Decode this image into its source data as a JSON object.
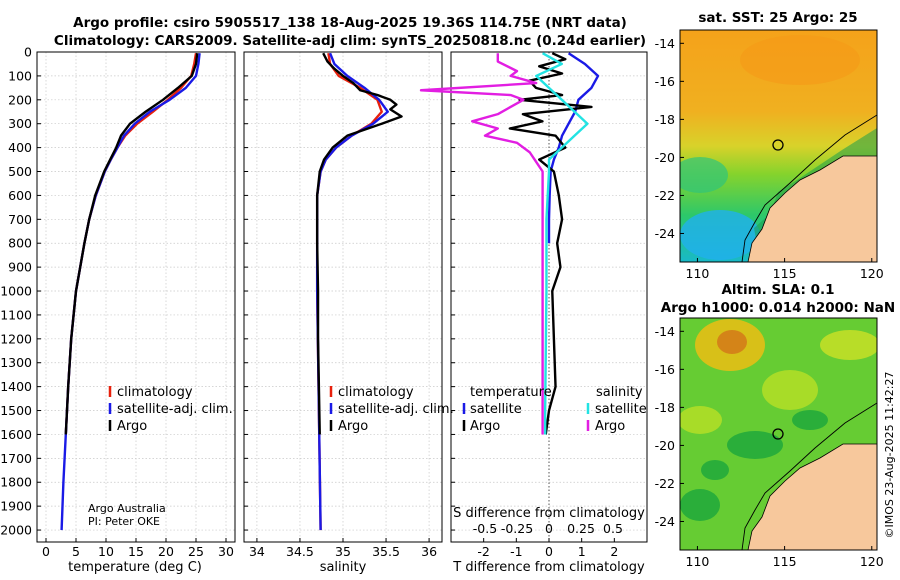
{
  "titles": {
    "line1": "Argo profile: csiro 5905517_138 18-Aug-2025 19.36S 114.75E (NRT data)",
    "line2": "Climatology: CARS2009. Satellite-adj clim: synTS_20250818.nc (0.24d earlier)",
    "sst_title": "sat. SST: 25 Argo: 25",
    "sla_title1": "Altim. SLA: 0.1",
    "sla_title2": "Argo h1000: 0.014 h2000: NaN"
  },
  "credits": {
    "line1": "Argo Australia",
    "line2": "PI: Peter OKE",
    "imos": "©IMOS 23-Aug-2025 11:42:27"
  },
  "colors": {
    "clim": "#e8200c",
    "sat": "#1a1ae6",
    "argo": "#000000",
    "sat_s": "#22e3e3",
    "argo_s": "#e21ee2",
    "land": "#f7c89c"
  },
  "chart_data": [
    {
      "type": "line",
      "id": "temperature",
      "xlabel": "temperature (deg C)",
      "ylabel": "",
      "xlim": [
        -1.5,
        31.5
      ],
      "ylim": [
        0,
        2050
      ],
      "xticks": [
        0,
        5,
        10,
        15,
        20,
        25,
        30
      ],
      "yticks": [
        0,
        100,
        200,
        300,
        400,
        500,
        600,
        700,
        800,
        900,
        1000,
        1100,
        1200,
        1300,
        1400,
        1500,
        1600,
        1700,
        1800,
        1900,
        2000
      ],
      "legend": [
        "climatology",
        "satellite-adj. clim.",
        "Argo"
      ],
      "series": [
        {
          "name": "climatology",
          "color": "#e8200c",
          "depth": [
            5,
            50,
            100,
            150,
            200,
            250,
            300,
            350,
            400,
            450,
            500,
            600,
            700,
            800,
            1000,
            1200,
            1400,
            1600
          ],
          "values": [
            25,
            24.7,
            24.2,
            22.5,
            20.3,
            17.8,
            15.2,
            13.2,
            11.9,
            10.8,
            9.8,
            8.3,
            7.2,
            6.4,
            5.0,
            4.2,
            3.7,
            3.3
          ]
        },
        {
          "name": "satellite-adj. clim.",
          "color": "#1a1ae6",
          "depth": [
            5,
            50,
            100,
            150,
            200,
            250,
            300,
            350,
            400,
            450,
            500,
            600,
            700,
            800,
            1000,
            1200,
            1400,
            1600,
            1800,
            2000
          ],
          "values": [
            25.6,
            25.4,
            25.0,
            23.3,
            20.6,
            17.3,
            14.8,
            13.0,
            11.9,
            10.8,
            9.8,
            8.3,
            7.2,
            6.4,
            5.0,
            4.2,
            3.7,
            3.3,
            2.9,
            2.6
          ]
        },
        {
          "name": "Argo",
          "color": "#000000",
          "depth": [
            5,
            50,
            100,
            150,
            200,
            250,
            300,
            350,
            400,
            450,
            500,
            600,
            700,
            800,
            1000,
            1200,
            1400,
            1600
          ],
          "values": [
            25.2,
            25.0,
            24.3,
            22.0,
            19.5,
            16.6,
            14.0,
            12.5,
            11.7,
            10.7,
            9.7,
            8.2,
            7.2,
            6.4,
            5.0,
            4.2,
            3.7,
            3.3
          ]
        }
      ]
    },
    {
      "type": "line",
      "id": "salinity",
      "xlabel": "salinity",
      "ylabel": "",
      "xlim": [
        33.85,
        36.15
      ],
      "ylim": [
        0,
        2050
      ],
      "xticks": [
        34,
        34.5,
        35,
        35.5,
        36
      ],
      "series": [
        {
          "name": "climatology",
          "color": "#e8200c",
          "depth": [
            5,
            50,
            100,
            150,
            200,
            250,
            300,
            350,
            400,
            450,
            500,
            600,
            800,
            1000,
            1500,
            2000
          ],
          "values": [
            34.83,
            34.85,
            34.95,
            35.2,
            35.4,
            35.45,
            35.33,
            35.1,
            34.92,
            34.8,
            34.74,
            34.7,
            34.7,
            34.7,
            34.72,
            34.74
          ]
        },
        {
          "name": "satellite-adj. clim.",
          "color": "#1a1ae6",
          "depth": [
            5,
            50,
            100,
            150,
            200,
            250,
            300,
            350,
            400,
            450,
            500,
            600,
            800,
            1000,
            1500,
            2000
          ],
          "values": [
            34.85,
            34.9,
            35.05,
            35.25,
            35.42,
            35.52,
            35.35,
            35.1,
            34.92,
            34.8,
            34.74,
            34.7,
            34.7,
            34.7,
            34.72,
            34.74
          ]
        },
        {
          "name": "Argo",
          "color": "#000000",
          "depth": [
            5,
            40,
            70,
            100,
            130,
            160,
            180,
            200,
            220,
            240,
            270,
            300,
            350,
            400,
            450,
            500,
            600,
            800,
            1000,
            1200,
            1400,
            1600
          ],
          "values": [
            34.77,
            34.82,
            34.9,
            35.0,
            35.12,
            35.2,
            35.4,
            35.55,
            35.62,
            35.55,
            35.68,
            35.45,
            35.05,
            34.88,
            34.78,
            34.73,
            34.7,
            34.7,
            34.71,
            34.71,
            34.72,
            34.73
          ]
        }
      ]
    },
    {
      "type": "line",
      "id": "differences",
      "xlabel": "T difference from climatology",
      "xlabel_top": "S difference from climatology",
      "xlim": [
        -3.0,
        3.0
      ],
      "ylim": [
        0,
        2050
      ],
      "xticks": [
        -2,
        -1,
        0,
        1,
        2
      ],
      "xticks_s": [
        "-0.5",
        "-0.25",
        "0",
        "0.25",
        "0.5"
      ],
      "legend_left_title": "temperature",
      "legend_right_title": "salinity",
      "legend_entries": [
        "satellite",
        "Argo"
      ],
      "series": [
        {
          "name": "T satellite",
          "color": "#1a1ae6",
          "depth": [
            5,
            50,
            100,
            150,
            200,
            250,
            300,
            350,
            400,
            450,
            500,
            600,
            700,
            800
          ],
          "values": [
            0.6,
            1.1,
            1.5,
            1.3,
            0.9,
            0.8,
            0.6,
            0.4,
            0.3,
            0.15,
            0.05,
            0.02,
            0.0,
            0.0
          ]
        },
        {
          "name": "T Argo",
          "color": "#000000",
          "depth": [
            5,
            30,
            60,
            90,
            120,
            150,
            180,
            200,
            230,
            260,
            290,
            320,
            350,
            400,
            450,
            500,
            600,
            700,
            800,
            900,
            1000,
            1200,
            1400,
            1500,
            1600
          ],
          "values": [
            0.1,
            0.5,
            -0.3,
            0.4,
            -0.6,
            -0.4,
            0.4,
            -0.9,
            1.3,
            -0.8,
            -0.2,
            -1.2,
            0.2,
            0.5,
            -0.3,
            0.15,
            0.3,
            0.4,
            0.25,
            0.35,
            0.1,
            0.15,
            0.2,
            0.0,
            -0.1
          ]
        },
        {
          "name": "S satellite",
          "color": "#22e3e3",
          "depth": [
            5,
            50,
            100,
            150,
            200,
            250,
            300,
            350,
            400,
            450,
            500,
            700,
            1000,
            1500,
            1600
          ],
          "values": [
            -0.05,
            0.1,
            -0.1,
            0.0,
            0.1,
            0.2,
            0.3,
            0.2,
            0.1,
            0.0,
            0.0,
            -0.02,
            -0.02,
            -0.03,
            -0.03
          ]
        },
        {
          "name": "S Argo",
          "color": "#e21ee2",
          "depth": [
            5,
            40,
            80,
            100,
            130,
            160,
            180,
            200,
            230,
            260,
            290,
            320,
            350,
            380,
            420,
            460,
            500,
            800,
            1000,
            1400,
            1600
          ],
          "values": [
            -0.4,
            -0.4,
            -0.25,
            -0.3,
            -0.1,
            -1.0,
            -0.3,
            -0.2,
            -0.3,
            -0.4,
            -0.6,
            -0.4,
            -0.5,
            -0.25,
            -0.15,
            -0.1,
            -0.05,
            -0.05,
            -0.05,
            -0.05,
            -0.05
          ]
        }
      ]
    },
    {
      "type": "heatmap",
      "id": "sst_map",
      "title": "sat. SST: 25 Argo: 25",
      "xticks": [
        "110",
        "115",
        "120"
      ],
      "yticks": [
        "-14",
        "-16",
        "-18",
        "-20",
        "-22",
        "-24"
      ],
      "xlim": [
        109,
        120.3
      ],
      "ylim": [
        -25.5,
        -13.3
      ],
      "argo_position": {
        "lon": 114.75,
        "lat": -19.36
      }
    },
    {
      "type": "heatmap",
      "id": "sla_map",
      "title": "Altim. SLA: 0.1",
      "xticks": [
        "110",
        "115",
        "120"
      ],
      "yticks": [
        "-14",
        "-16",
        "-18",
        "-20",
        "-22",
        "-24"
      ],
      "xlim": [
        109,
        120.3
      ],
      "ylim": [
        -25.5,
        -13.3
      ],
      "argo_position": {
        "lon": 114.75,
        "lat": -19.36
      }
    }
  ]
}
